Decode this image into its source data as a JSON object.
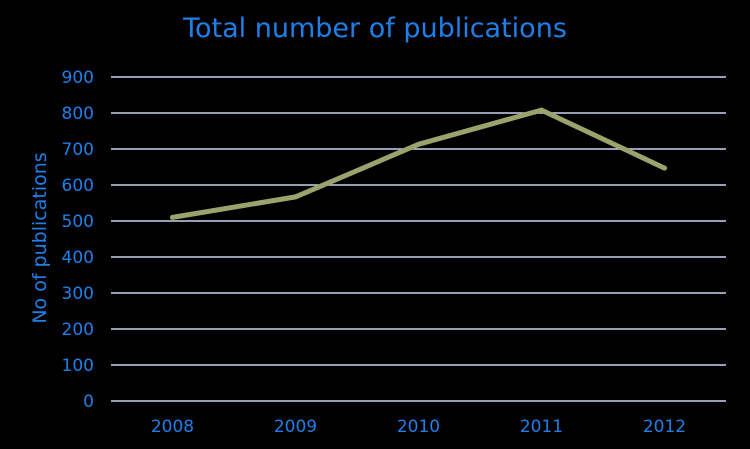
{
  "colors": {
    "background": "#000000",
    "text": "#1f7fe8",
    "gridline": "#c8d4f0",
    "series_line": "#9aa36b"
  },
  "chart_data": {
    "type": "line",
    "title": "Total number of publications",
    "xlabel": "",
    "ylabel": "No of publications",
    "categories": [
      "2008",
      "2009",
      "2010",
      "2011",
      "2012"
    ],
    "series": [
      {
        "values": [
          510,
          567,
          713,
          808,
          647
        ]
      }
    ],
    "ylim": [
      0,
      900
    ],
    "yticks": [
      0,
      100,
      200,
      300,
      400,
      500,
      600,
      700,
      800,
      900
    ],
    "grid": true,
    "legend": "none"
  }
}
